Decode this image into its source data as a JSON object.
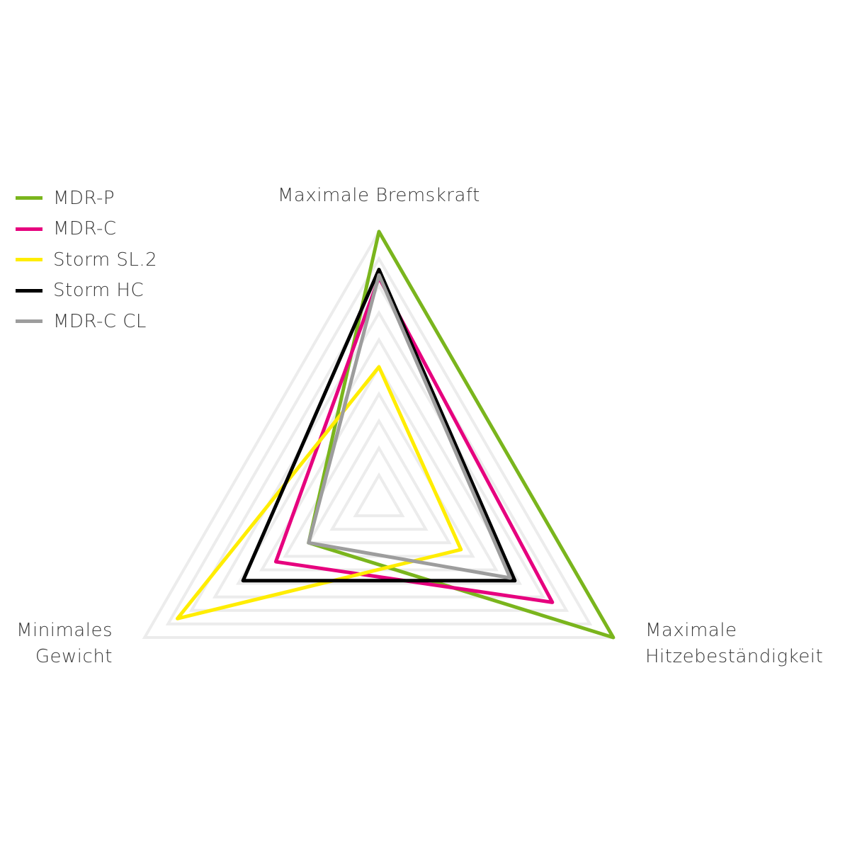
{
  "chart_data": {
    "type": "radar",
    "axes": [
      "Maximale Bremskraft",
      "Maximale Hitzebeständigkeit",
      "Minimales Gewicht"
    ],
    "axis_label_lines": [
      [
        "Maximale Bremskraft"
      ],
      [
        "Maximale",
        "Hitzebeständigkeit"
      ],
      [
        "Minimales",
        "Gewicht"
      ]
    ],
    "range": [
      0,
      10
    ],
    "grid_levels": 10,
    "grid": true,
    "legend_placement": "top-left",
    "series": [
      {
        "name": "MDR-P",
        "color": "#7ab51d",
        "values": [
          10,
          10,
          3
        ]
      },
      {
        "name": "MDR-C",
        "color": "#e6007e",
        "values": [
          8.3,
          7.4,
          4.4
        ]
      },
      {
        "name": "Storm SL.2",
        "color": "#ffed00",
        "values": [
          5,
          3.5,
          8.6
        ]
      },
      {
        "name": "Storm HC",
        "color": "#000000",
        "values": [
          8.6,
          5.8,
          5.8
        ]
      },
      {
        "name": "MDR-C CL",
        "color": "#9d9d9d",
        "values": [
          8.4,
          5.6,
          3
        ]
      }
    ]
  }
}
